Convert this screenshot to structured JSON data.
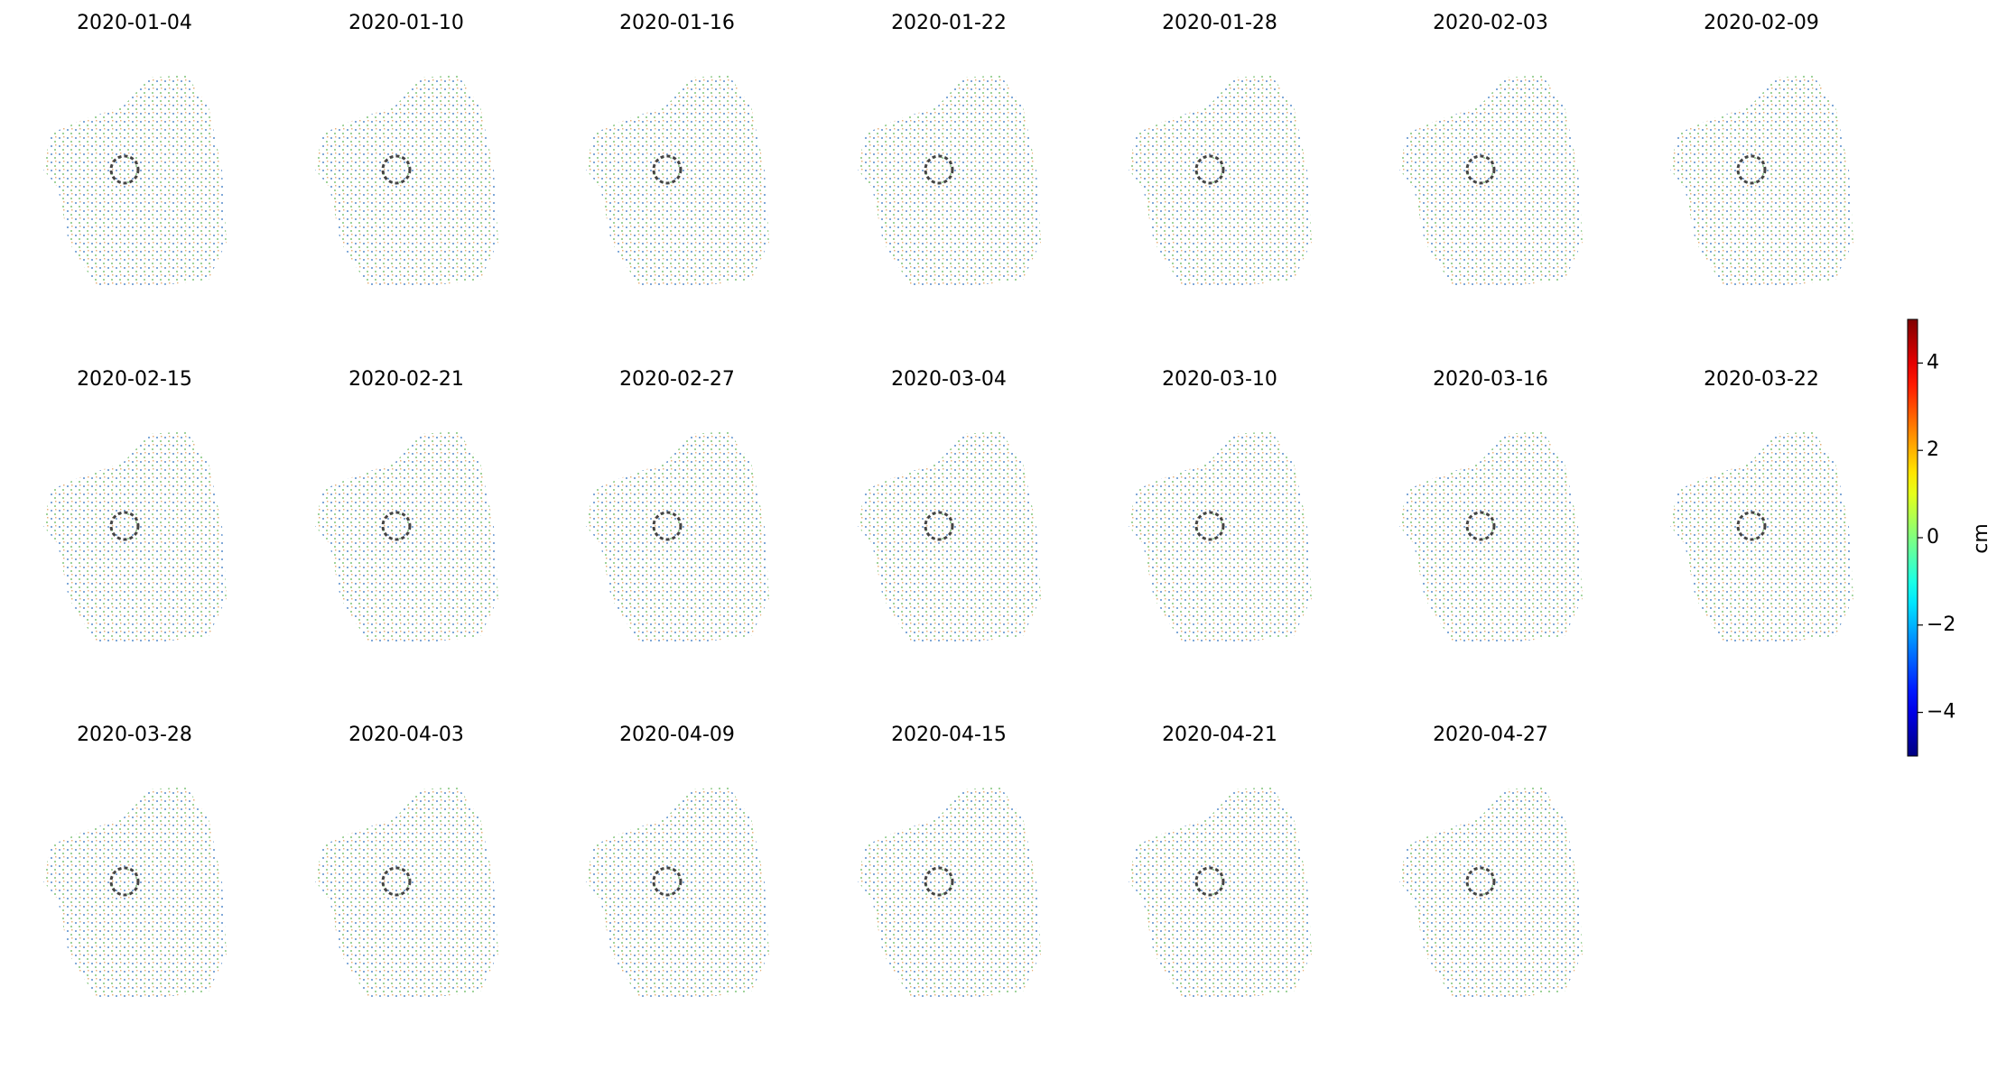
{
  "chart_data": {
    "type": "image-grid",
    "panels": [
      "2020-01-04",
      "2020-01-10",
      "2020-01-16",
      "2020-01-22",
      "2020-01-28",
      "2020-02-03",
      "2020-02-09",
      "2020-02-15",
      "2020-02-21",
      "2020-02-27",
      "2020-03-04",
      "2020-03-10",
      "2020-03-16",
      "2020-03-22",
      "2020-03-28",
      "2020-04-03",
      "2020-04-09",
      "2020-04-15",
      "2020-04-21",
      "2020-04-27"
    ],
    "colorbar": {
      "label": "cm",
      "lim": [
        -5,
        5
      ],
      "ticks": [
        {
          "value": -4,
          "label": "−4"
        },
        {
          "value": -2,
          "label": "−2"
        },
        0,
        2,
        4
      ],
      "colormap": "jet"
    }
  }
}
